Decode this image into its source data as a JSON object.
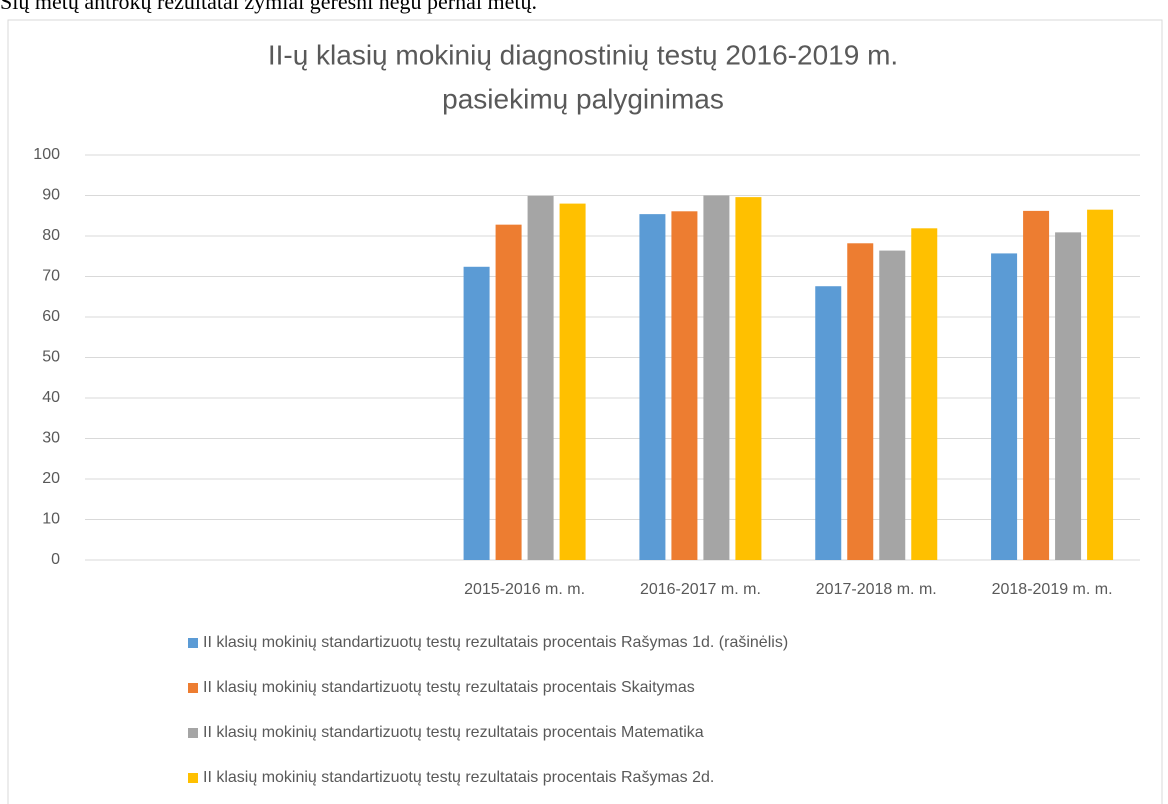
{
  "intro_text": "Šių metų antrokų rezultatai žymiai geresni negu pernai metų.",
  "chart_data": {
    "type": "bar",
    "title_lines": [
      "II-ų klasių mokinių diagnostinių testų 2016-2019 m.",
      "pasiekimų palyginimas"
    ],
    "categories": [
      null,
      null,
      "2015-2016 m. m.",
      "2016-2017 m. m.",
      "2017-2018 m. m.",
      "2018-2019 m. m."
    ],
    "series": [
      {
        "name": "II klasių mokinių standartizuotų testų rezultatais procentais Rašymas 1d. (rašinėlis)",
        "color": "#5b9bd5",
        "values": [
          null,
          null,
          72.4,
          85.4,
          67.6,
          75.7
        ]
      },
      {
        "name": "II klasių mokinių standartizuotų testų rezultatais procentais Skaitymas",
        "color": "#ed7d31",
        "values": [
          null,
          null,
          82.8,
          86.1,
          78.2,
          86.2
        ]
      },
      {
        "name": "II klasių mokinių standartizuotų testų rezultatais procentais Matematika",
        "color": "#a5a5a5",
        "values": [
          null,
          null,
          89.9,
          90.0,
          76.4,
          80.9
        ]
      },
      {
        "name": "II klasių mokinių standartizuotų testų rezultatais procentais Rašymas 2d.",
        "color": "#ffc000",
        "values": [
          null,
          null,
          88.0,
          89.6,
          81.9,
          86.5
        ]
      }
    ],
    "ylim": [
      0,
      100
    ],
    "yticks": [
      0,
      10,
      20,
      30,
      40,
      50,
      60,
      70,
      80,
      90,
      100
    ],
    "grid": true,
    "legend": "bottom"
  }
}
